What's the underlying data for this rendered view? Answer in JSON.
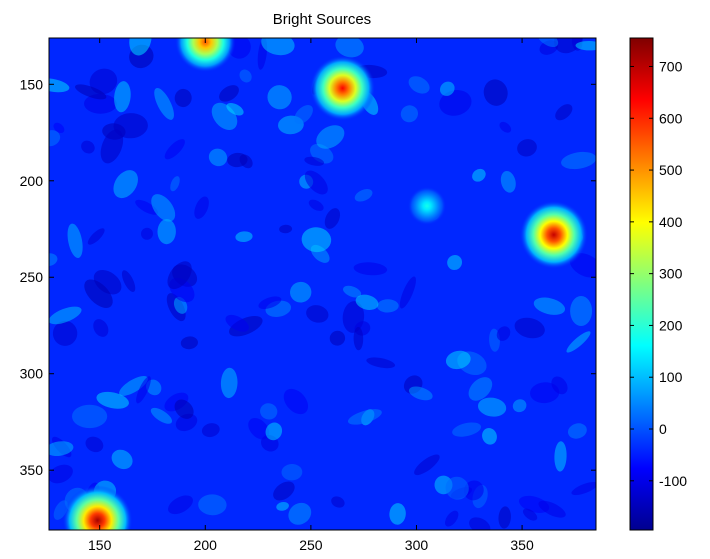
{
  "chart_data": {
    "type": "heatmap",
    "title": "Bright Sources",
    "xlabel": "",
    "ylabel": "",
    "xlim": [
      126,
      385
    ],
    "ylim": [
      381,
      126
    ],
    "y_reversed": true,
    "xticks": [
      150,
      200,
      250,
      300,
      350
    ],
    "yticks": [
      150,
      200,
      250,
      300,
      350
    ],
    "colormap": "jet",
    "colorbar": {
      "range": [
        -195,
        755
      ],
      "ticks": [
        -100,
        0,
        100,
        200,
        300,
        400,
        500,
        600,
        700
      ]
    },
    "background_level": -40,
    "sources": [
      {
        "x": 149,
        "y": 376,
        "peak": 720
      },
      {
        "x": 200,
        "y": 128,
        "peak": 560
      },
      {
        "x": 265,
        "y": 152,
        "peak": 640
      },
      {
        "x": 365,
        "y": 228,
        "peak": 690
      },
      {
        "x": 305,
        "y": 213,
        "peak": 180
      }
    ]
  }
}
